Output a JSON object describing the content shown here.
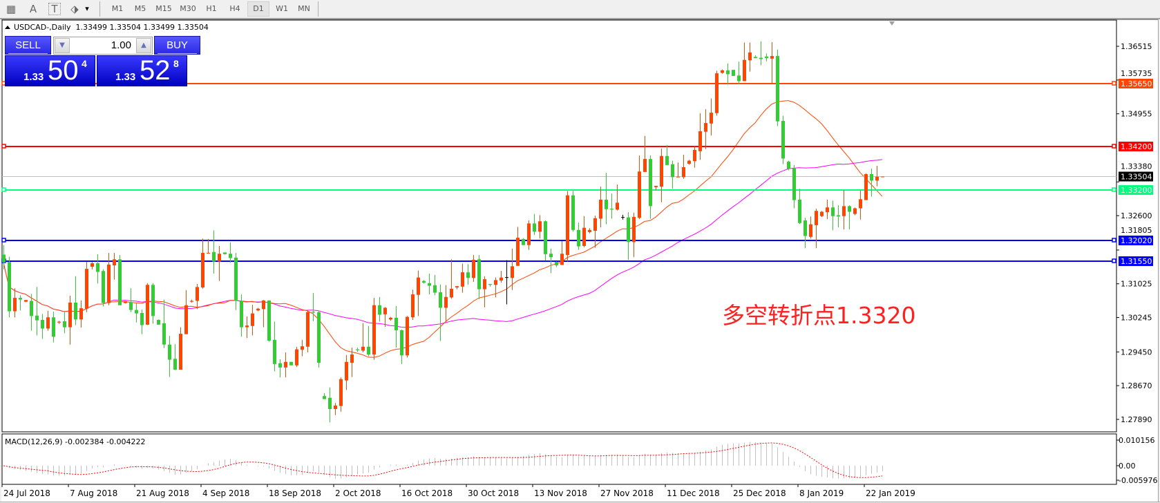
{
  "toolbar": {
    "icons": [
      {
        "name": "grid-properties-icon",
        "glyph": "▦"
      },
      {
        "name": "text-tool-icon",
        "glyph": "A"
      },
      {
        "name": "text-label-tool-icon",
        "glyph": "T"
      },
      {
        "name": "arrows-tool-icon",
        "glyph": "⬗"
      }
    ],
    "dropdown_glyph": "▾",
    "periods": [
      "M1",
      "M5",
      "M15",
      "M30",
      "H1",
      "H4",
      "D1",
      "W1",
      "MN"
    ],
    "active_period": "D1"
  },
  "chart": {
    "symbol_line": "USDCAD-,Daily",
    "ohlc": "1.33499 1.33504 1.33499 1.33504"
  },
  "trade_panel": {
    "sell_label": "SELL",
    "buy_label": "BUY",
    "lot": "1.00",
    "sell_price": {
      "big_figure": "1.33",
      "pips": "50",
      "fraction": "4"
    },
    "buy_price": {
      "big_figure": "1.33",
      "pips": "52",
      "fraction": "8"
    }
  },
  "annotation": {
    "text": "多空转折点1.3320",
    "color": "#ff2020"
  },
  "chart_data": {
    "type": "candlestick",
    "colors": {
      "bull": "#ff4500",
      "bear": "#32cd32",
      "doji": "#000000",
      "ma_fast": "#ff4500",
      "ma_slow": "#ff00ff",
      "macd_hist": "#c0c0c0",
      "macd_signal": "#ff0000"
    },
    "candles_ohlc": [
      [
        1.317,
        1.3192,
        1.3136,
        1.3152
      ],
      [
        1.3153,
        1.3165,
        1.3025,
        1.3039
      ],
      [
        1.3039,
        1.3092,
        1.3025,
        1.307
      ],
      [
        1.307,
        1.3076,
        1.3041,
        1.3066
      ],
      [
        1.3061,
        1.3065,
        1.306,
        1.3065
      ],
      [
        1.3063,
        1.3079,
        1.2994,
        1.3028
      ],
      [
        1.3029,
        1.3095,
        1.2983,
        1.3018
      ],
      [
        1.3019,
        1.3033,
        1.2975,
        1.2999
      ],
      [
        1.2999,
        1.304,
        1.2994,
        1.3025
      ],
      [
        1.3025,
        1.3038,
        1.2967,
        1.298
      ],
      [
        1.3013,
        1.3017,
        1.301,
        1.3015
      ],
      [
        1.3016,
        1.304,
        1.2988,
        1.3002
      ],
      [
        1.3002,
        1.3075,
        1.2962,
        1.3059
      ],
      [
        1.3059,
        1.312,
        1.3007,
        1.302
      ],
      [
        1.302,
        1.3064,
        1.3001,
        1.3046
      ],
      [
        1.3045,
        1.3153,
        1.3037,
        1.3137
      ],
      [
        1.3142,
        1.3153,
        1.3136,
        1.315
      ],
      [
        1.315,
        1.3171,
        1.3103,
        1.313
      ],
      [
        1.3132,
        1.3136,
        1.305,
        1.3058
      ],
      [
        1.3058,
        1.3174,
        1.3053,
        1.3147
      ],
      [
        1.3145,
        1.3174,
        1.3112,
        1.3159
      ],
      [
        1.3159,
        1.3169,
        1.3053,
        1.3053
      ],
      [
        1.3058,
        1.3062,
        1.3057,
        1.3062
      ],
      [
        1.306,
        1.3092,
        1.3037,
        1.3042
      ],
      [
        1.3042,
        1.3057,
        1.3013,
        1.3034
      ],
      [
        1.3035,
        1.3043,
        1.2986,
        1.3007
      ],
      [
        1.3008,
        1.3104,
        1.3007,
        1.31
      ],
      [
        1.31,
        1.3104,
        1.301,
        1.3028
      ],
      [
        1.3019,
        1.302,
        1.3008,
        1.3008
      ],
      [
        1.3011,
        1.3066,
        1.2954,
        1.2962
      ],
      [
        1.2962,
        1.2982,
        1.2887,
        1.2927
      ],
      [
        1.2929,
        1.2963,
        1.2903,
        1.2904
      ],
      [
        1.2904,
        1.3002,
        1.2904,
        1.2987
      ],
      [
        1.2986,
        1.3088,
        1.2986,
        1.3053
      ],
      [
        1.3061,
        1.3066,
        1.3059,
        1.3063
      ],
      [
        1.3063,
        1.3102,
        1.3044,
        1.3095
      ],
      [
        1.3094,
        1.3207,
        1.3091,
        1.3174
      ],
      [
        1.3173,
        1.3206,
        1.3173,
        1.3174
      ],
      [
        1.3176,
        1.3226,
        1.3126,
        1.3154
      ],
      [
        1.3154,
        1.319,
        1.3109,
        1.3172
      ],
      [
        1.3175,
        1.3175,
        1.317,
        1.3171
      ],
      [
        1.3172,
        1.3198,
        1.3151,
        1.3162
      ],
      [
        1.3163,
        1.3174,
        1.3042,
        1.3063
      ],
      [
        1.3063,
        1.3078,
        1.298,
        1.3002
      ],
      [
        1.3002,
        1.3027,
        1.2977,
        1.3006
      ],
      [
        1.3005,
        1.3054,
        1.2983,
        1.3034
      ],
      [
        1.3041,
        1.3047,
        1.3039,
        1.3045
      ],
      [
        1.3044,
        1.3065,
        1.3002,
        1.3064
      ],
      [
        1.3064,
        1.3064,
        1.2969,
        1.2971
      ],
      [
        1.2973,
        1.3015,
        1.29,
        1.2917
      ],
      [
        1.2919,
        1.2928,
        1.2886,
        1.2909
      ],
      [
        1.2909,
        1.2944,
        1.2886,
        1.2922
      ],
      [
        1.2922,
        1.2922,
        1.2914,
        1.2914
      ],
      [
        1.2914,
        1.2957,
        1.291,
        1.2951
      ],
      [
        1.295,
        1.2973,
        1.2935,
        1.2958
      ],
      [
        1.2957,
        1.3042,
        1.2944,
        1.3037
      ],
      [
        1.3038,
        1.3081,
        1.3016,
        1.3036
      ],
      [
        1.3037,
        1.3041,
        1.2909,
        1.292
      ],
      [
        1.2843,
        1.285,
        1.2836,
        1.2836
      ],
      [
        1.2839,
        1.2863,
        1.2782,
        1.2813
      ],
      [
        1.2813,
        1.2827,
        1.2799,
        1.2821
      ],
      [
        1.282,
        1.2886,
        1.2807,
        1.2882
      ],
      [
        1.2879,
        1.2938,
        1.2857,
        1.2922
      ],
      [
        1.292,
        1.2955,
        1.2887,
        1.2939
      ],
      [
        1.2951,
        1.2955,
        1.2945,
        1.2949
      ],
      [
        1.2948,
        1.3011,
        1.2944,
        1.2957
      ],
      [
        1.2957,
        1.3005,
        1.2935,
        1.2939
      ],
      [
        1.2939,
        1.307,
        1.2927,
        1.3053
      ],
      [
        1.3053,
        1.3072,
        1.3015,
        1.3031
      ],
      [
        1.3032,
        1.3049,
        1.3003,
        1.3047
      ],
      [
        1.302,
        1.3026,
        1.3017,
        1.3024
      ],
      [
        1.3024,
        1.3051,
        1.2955,
        1.2995
      ],
      [
        1.2995,
        1.2997,
        1.2917,
        1.2937
      ],
      [
        1.2937,
        1.3028,
        1.2932,
        1.3026
      ],
      [
        1.3025,
        1.3089,
        1.3019,
        1.3078
      ],
      [
        1.3077,
        1.3133,
        1.3028,
        1.3117
      ],
      [
        1.3109,
        1.3111,
        1.3103,
        1.3105
      ],
      [
        1.3104,
        1.3126,
        1.3078,
        1.3098
      ],
      [
        1.3099,
        1.3123,
        1.3076,
        1.3082
      ],
      [
        1.3083,
        1.3101,
        1.297,
        1.3047
      ],
      [
        1.3047,
        1.3099,
        1.3015,
        1.3072
      ],
      [
        1.3071,
        1.3159,
        1.3068,
        1.3091
      ],
      [
        1.3094,
        1.3097,
        1.309,
        1.3097
      ],
      [
        1.3096,
        1.3149,
        1.3082,
        1.3129
      ],
      [
        1.3129,
        1.3148,
        1.31,
        1.3116
      ],
      [
        1.3116,
        1.3169,
        1.3107,
        1.3158
      ],
      [
        1.3159,
        1.3169,
        1.3067,
        1.309
      ],
      [
        1.309,
        1.312,
        1.3048,
        1.3113
      ],
      [
        1.3102,
        1.3102,
        1.3096,
        1.31
      ],
      [
        1.31,
        1.3117,
        1.3071,
        1.3111
      ],
      [
        1.311,
        1.3132,
        1.3105,
        1.3117
      ],
      [
        1.3117,
        1.3157,
        1.3055,
        1.3117
      ],
      [
        1.3116,
        1.3184,
        1.3088,
        1.3143
      ],
      [
        1.3144,
        1.3234,
        1.3144,
        1.3209
      ],
      [
        1.3206,
        1.3208,
        1.3192,
        1.3192
      ],
      [
        1.3192,
        1.3249,
        1.3181,
        1.3242
      ],
      [
        1.3242,
        1.3264,
        1.3215,
        1.3223
      ],
      [
        1.3223,
        1.3261,
        1.3207,
        1.3247
      ],
      [
        1.3247,
        1.3249,
        1.3156,
        1.3171
      ],
      [
        1.3172,
        1.3184,
        1.3127,
        1.3164
      ],
      [
        1.3153,
        1.3154,
        1.3141,
        1.3145
      ],
      [
        1.3146,
        1.3201,
        1.3146,
        1.3172
      ],
      [
        1.3169,
        1.3317,
        1.3154,
        1.3307
      ],
      [
        1.3307,
        1.3317,
        1.3223,
        1.3227
      ],
      [
        1.3227,
        1.3244,
        1.3181,
        1.3189
      ],
      [
        1.319,
        1.3259,
        1.3187,
        1.3232
      ],
      [
        1.3222,
        1.3231,
        1.3219,
        1.3227
      ],
      [
        1.3225,
        1.326,
        1.3186,
        1.3254
      ],
      [
        1.3253,
        1.3327,
        1.3233,
        1.3297
      ],
      [
        1.3297,
        1.3359,
        1.324,
        1.3275
      ],
      [
        1.3276,
        1.3311,
        1.3253,
        1.3274
      ],
      [
        1.3274,
        1.3332,
        1.3272,
        1.329
      ],
      [
        1.3256,
        1.3262,
        1.3251,
        1.3256
      ],
      [
        1.3256,
        1.3268,
        1.3158,
        1.3199
      ],
      [
        1.3199,
        1.3267,
        1.3164,
        1.3257
      ],
      [
        1.3255,
        1.3399,
        1.3252,
        1.3362
      ],
      [
        1.3361,
        1.3444,
        1.3361,
        1.3391
      ],
      [
        1.3391,
        1.3399,
        1.3253,
        1.3282
      ],
      [
        1.3326,
        1.3329,
        1.3318,
        1.3329
      ],
      [
        1.3327,
        1.3415,
        1.3291,
        1.3398
      ],
      [
        1.3398,
        1.3423,
        1.3377,
        1.3377
      ],
      [
        1.3379,
        1.3387,
        1.3322,
        1.3349
      ],
      [
        1.3349,
        1.3383,
        1.3349,
        1.335
      ],
      [
        1.3349,
        1.3401,
        1.3345,
        1.3372
      ],
      [
        1.338,
        1.3389,
        1.3378,
        1.3387
      ],
      [
        1.3386,
        1.3421,
        1.3371,
        1.3412
      ],
      [
        1.3409,
        1.3497,
        1.3389,
        1.3455
      ],
      [
        1.3454,
        1.3506,
        1.3414,
        1.3474
      ],
      [
        1.3473,
        1.3531,
        1.3445,
        1.3498
      ],
      [
        1.3497,
        1.3595,
        1.3491,
        1.3589
      ],
      [
        1.359,
        1.3598,
        1.3588,
        1.3596
      ],
      [
        1.3596,
        1.3612,
        1.3563,
        1.3587
      ],
      [
        1.3597,
        1.3597,
        1.3583,
        1.3583
      ],
      [
        1.3584,
        1.3616,
        1.3565,
        1.3571
      ],
      [
        1.3571,
        1.366,
        1.3571,
        1.362
      ],
      [
        1.3619,
        1.366,
        1.3593,
        1.3637
      ],
      [
        1.3627,
        1.3631,
        1.3624,
        1.3624
      ],
      [
        1.3625,
        1.3663,
        1.3608,
        1.3622
      ],
      [
        1.3628,
        1.3635,
        1.3617,
        1.3624
      ],
      [
        1.3623,
        1.3661,
        1.3566,
        1.3629
      ],
      [
        1.3629,
        1.3644,
        1.3467,
        1.3478
      ],
      [
        1.3479,
        1.3491,
        1.3379,
        1.3392
      ],
      [
        1.3385,
        1.3387,
        1.3365,
        1.3368
      ],
      [
        1.3369,
        1.3377,
        1.3277,
        1.3296
      ],
      [
        1.3297,
        1.3322,
        1.3241,
        1.3243
      ],
      [
        1.3249,
        1.3255,
        1.3185,
        1.3213
      ],
      [
        1.3211,
        1.3258,
        1.3207,
        1.324
      ],
      [
        1.3238,
        1.3276,
        1.3185,
        1.3271
      ],
      [
        1.3259,
        1.3271,
        1.3257,
        1.3269
      ],
      [
        1.3268,
        1.3297,
        1.3252,
        1.3279
      ],
      [
        1.3279,
        1.3295,
        1.3226,
        1.3259
      ],
      [
        1.3261,
        1.3284,
        1.3233,
        1.3258
      ],
      [
        1.3259,
        1.3319,
        1.3228,
        1.3282
      ],
      [
        1.3282,
        1.3284,
        1.3228,
        1.3269
      ],
      [
        1.3264,
        1.3279,
        1.3261,
        1.3277
      ],
      [
        1.3277,
        1.3318,
        1.3251,
        1.3298
      ],
      [
        1.3296,
        1.3358,
        1.3296,
        1.3356
      ],
      [
        1.3356,
        1.3369,
        1.3304,
        1.3341
      ],
      [
        1.3341,
        1.3375,
        1.3328,
        1.335
      ],
      [
        1.33499,
        1.33504,
        1.33499,
        1.33504
      ]
    ],
    "price_axis_ticks": [
      "1.36515",
      "1.35735",
      "1.34955",
      "1.33380",
      "1.32600",
      "1.31805",
      "1.31025",
      "1.30245",
      "1.29450",
      "1.28670",
      "1.27890"
    ],
    "horizontal_lines": [
      {
        "value": 1.3565,
        "label": "1.35650",
        "color": "#ff4500"
      },
      {
        "value": 1.342,
        "label": "1.34200",
        "color": "#ff0000"
      },
      {
        "value": 1.332,
        "label": "1.33200",
        "color": "#00ff7f"
      },
      {
        "value": 1.3202,
        "label": "1.32020",
        "color": "#0000ff"
      },
      {
        "value": 1.3155,
        "label": "1.31550",
        "color": "#0000ff"
      }
    ],
    "current_price": {
      "value": 1.33504,
      "label": "1.33504",
      "color": "#c0c0c0"
    },
    "date_labels": [
      "24 Jul 2018",
      "7 Aug 2018",
      "21 Aug 2018",
      "4 Sep 2018",
      "18 Sep 2018",
      "2 Oct 2018",
      "16 Oct 2018",
      "30 Oct 2018",
      "13 Nov 2018",
      "27 Nov 2018",
      "11 Dec 2018",
      "25 Dec 2018",
      "8 Jan 2019",
      "22 Jan 2019"
    ],
    "macd": {
      "label": "MACD(12,26,9) -0.002384 -0.004222",
      "axis_ticks": [
        "0.010156",
        "0.00",
        "-0.005976"
      ]
    }
  }
}
